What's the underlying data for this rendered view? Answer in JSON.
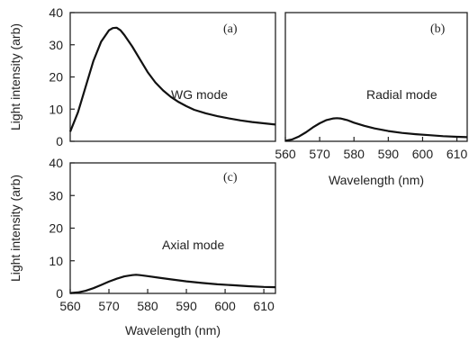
{
  "chart_data": [
    {
      "type": "line",
      "panel_label": "(a)",
      "annotation": "WG mode",
      "ylabel": "Light intensity (arb)",
      "xlabel": "",
      "xlim": [
        560,
        613
      ],
      "ylim": [
        0,
        40
      ],
      "yticks": [
        0,
        10,
        20,
        30,
        40
      ],
      "xticks": [],
      "series": [
        {
          "x": [
            560,
            562,
            564,
            566,
            568,
            570,
            571,
            572,
            573,
            574,
            576,
            578,
            580,
            582,
            584,
            586,
            588,
            590,
            592,
            595,
            598,
            601,
            604,
            607,
            610,
            613
          ],
          "y": [
            3,
            9,
            17,
            25,
            31,
            34.5,
            35.2,
            35.3,
            34.5,
            33,
            29.5,
            25.5,
            21.5,
            18.3,
            15.8,
            13.8,
            12.2,
            10.9,
            9.8,
            8.7,
            7.8,
            7.1,
            6.5,
            6,
            5.6,
            5.2
          ]
        }
      ]
    },
    {
      "type": "line",
      "panel_label": "(b)",
      "annotation": "Radial mode",
      "ylabel": "",
      "xlabel": "Wavelength (nm)",
      "xlim": [
        560,
        613
      ],
      "ylim": [
        0,
        40
      ],
      "yticks": [],
      "xticks": [
        560,
        570,
        580,
        590,
        600,
        610
      ],
      "series": [
        {
          "x": [
            560,
            562,
            564,
            566,
            568,
            570,
            572,
            574,
            575,
            576,
            578,
            580,
            583,
            586,
            590,
            594,
            598,
            602,
            606,
            610,
            613
          ],
          "y": [
            0.2,
            0.6,
            1.5,
            2.8,
            4.3,
            5.6,
            6.6,
            7.1,
            7.2,
            7.1,
            6.6,
            5.8,
            4.8,
            4,
            3.2,
            2.6,
            2.2,
            1.9,
            1.6,
            1.4,
            1.3
          ]
        }
      ]
    },
    {
      "type": "line",
      "panel_label": "(c)",
      "annotation": "Axial mode",
      "ylabel": "Light intensity (arb)",
      "xlabel": "Wavelength (nm)",
      "xlim": [
        560,
        613
      ],
      "ylim": [
        0,
        40
      ],
      "yticks": [
        0,
        10,
        20,
        30,
        40
      ],
      "xticks": [
        560,
        570,
        580,
        590,
        600,
        610
      ],
      "series": [
        {
          "x": [
            560,
            562,
            564,
            566,
            568,
            570,
            572,
            574,
            576,
            577,
            578,
            580,
            583,
            586,
            590,
            594,
            598,
            602,
            606,
            610,
            613
          ],
          "y": [
            0.1,
            0.3,
            0.8,
            1.6,
            2.6,
            3.6,
            4.5,
            5.2,
            5.6,
            5.7,
            5.6,
            5.3,
            4.8,
            4.3,
            3.7,
            3.2,
            2.8,
            2.5,
            2.2,
            2,
            1.9
          ]
        }
      ]
    }
  ]
}
